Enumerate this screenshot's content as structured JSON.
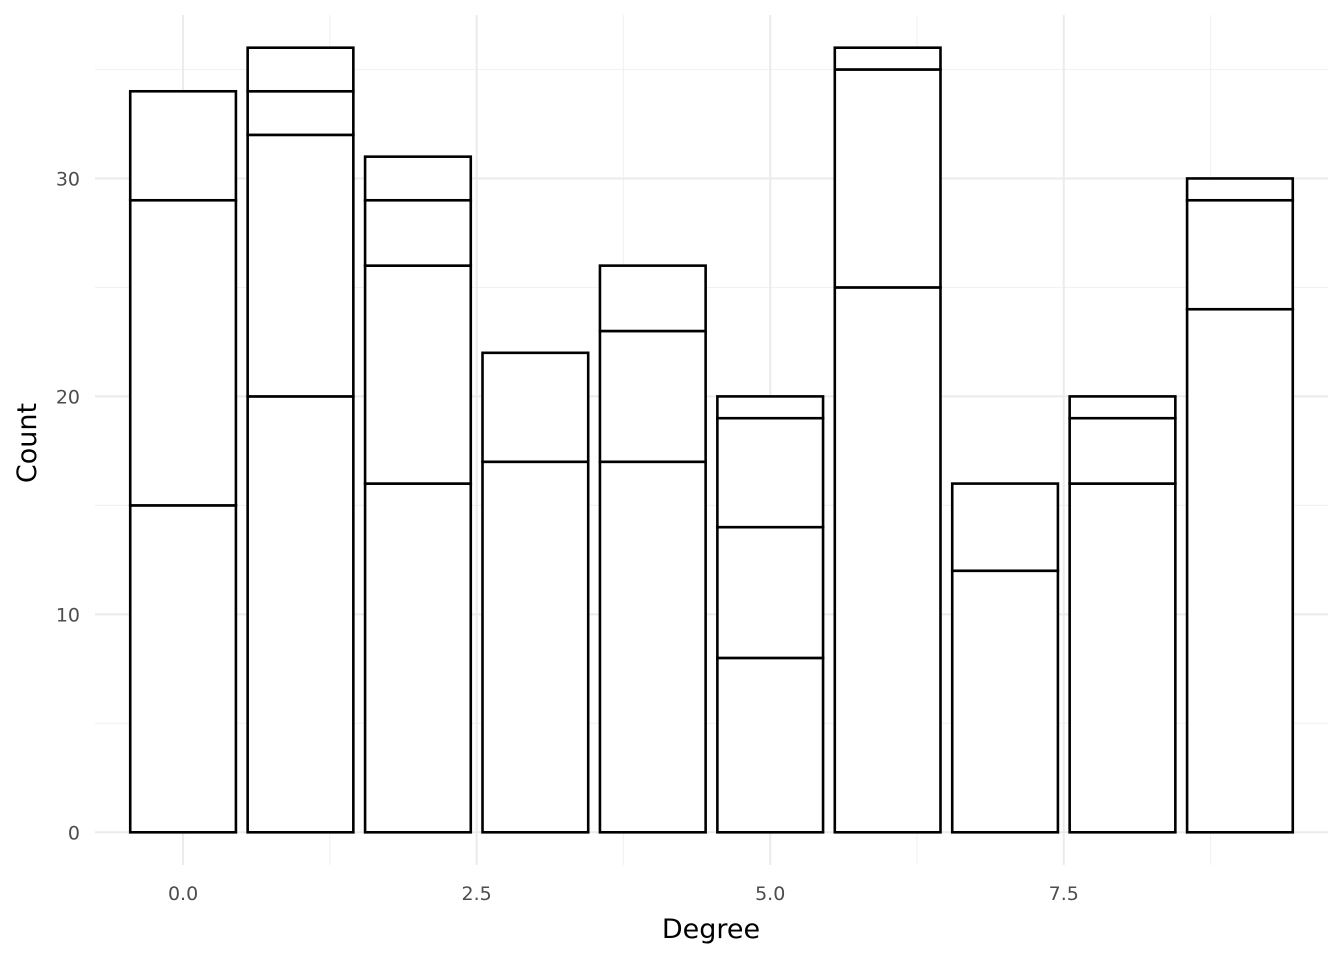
{
  "chart_data": {
    "type": "bar",
    "stacked": true,
    "xlabel": "Degree",
    "ylabel": "Count",
    "x": [
      0,
      1,
      2,
      3,
      4,
      5,
      6,
      7,
      8,
      9
    ],
    "segments": [
      [
        15,
        14,
        5
      ],
      [
        20,
        12,
        2,
        2
      ],
      [
        16,
        10,
        3,
        2
      ],
      [
        17,
        5
      ],
      [
        17,
        6,
        3
      ],
      [
        8,
        6,
        5,
        1
      ],
      [
        25,
        10,
        1
      ],
      [
        12,
        4
      ],
      [
        16,
        3,
        1
      ],
      [
        24,
        5,
        1
      ]
    ],
    "totals": [
      34,
      36,
      31,
      22,
      26,
      20,
      36,
      16,
      20,
      30
    ],
    "xlim": [
      -0.75,
      9.75
    ],
    "ylim": [
      -1.5,
      37.5
    ],
    "x_ticks": [
      0.0,
      2.5,
      5.0,
      7.5
    ],
    "x_tick_labels": [
      "0.0",
      "2.5",
      "5.0",
      "7.5"
    ],
    "y_ticks": [
      0,
      10,
      20,
      30
    ],
    "y_tick_labels": [
      "0",
      "10",
      "20",
      "30"
    ],
    "grid": true,
    "legend": "none",
    "bar_fill": "#ffffff",
    "bar_outline": "#000000"
  }
}
